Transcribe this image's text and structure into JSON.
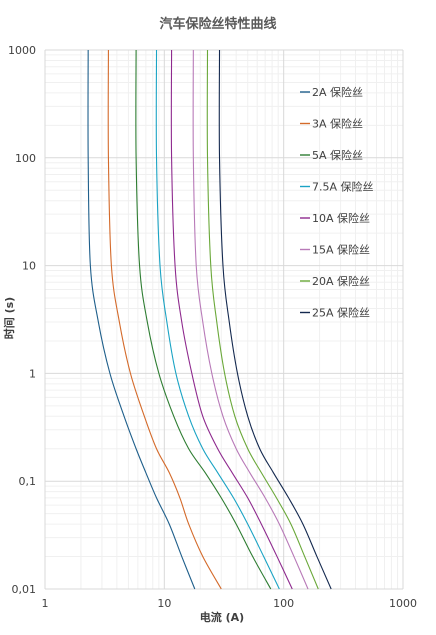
{
  "chart_data": {
    "type": "line",
    "title": "汽车保险丝特性曲线",
    "xlabel": "电流 (A)",
    "ylabel": "时间 (s)",
    "x_scale": "log",
    "y_scale": "log",
    "xlim": [
      1,
      1000
    ],
    "ylim": [
      0.01,
      1000
    ],
    "x_ticks": [
      {
        "value": 1,
        "label": "1"
      },
      {
        "value": 10,
        "label": "10"
      },
      {
        "value": 100,
        "label": "100"
      },
      {
        "value": 1000,
        "label": "1000"
      }
    ],
    "y_ticks": [
      {
        "value": 1000,
        "label": "1000"
      },
      {
        "value": 100,
        "label": "100"
      },
      {
        "value": 10,
        "label": "10"
      },
      {
        "value": 1,
        "label": "1"
      },
      {
        "value": 0.1,
        "label": "0,1"
      },
      {
        "value": 0.01,
        "label": "0,01"
      }
    ],
    "grid": true,
    "legend": "right",
    "series": [
      {
        "name": "2A 保险丝",
        "color": "#1f5f8b",
        "x": [
          2.3,
          2.3,
          2.4,
          2.8,
          3.5,
          4.6,
          5.8,
          7.0,
          8.6,
          11.0,
          14.0,
          18.0
        ],
        "y": [
          1000,
          100,
          10,
          3,
          1,
          0.4,
          0.2,
          0.12,
          0.07,
          0.04,
          0.02,
          0.01
        ]
      },
      {
        "name": "3A 保险丝",
        "color": "#d46a2a",
        "x": [
          3.4,
          3.4,
          3.6,
          4.2,
          5.2,
          6.8,
          8.6,
          11.0,
          13.5,
          16.0,
          21.0,
          30.0
        ],
        "y": [
          1000,
          100,
          10,
          3,
          1,
          0.4,
          0.2,
          0.12,
          0.07,
          0.04,
          0.02,
          0.01
        ]
      },
      {
        "name": "5A 保险丝",
        "color": "#2e7d32",
        "x": [
          5.8,
          5.8,
          6.2,
          7.2,
          9.0,
          12.0,
          16.0,
          22.0,
          30.0,
          40.0,
          55.0,
          78.0
        ],
        "y": [
          1000,
          100,
          10,
          3,
          1,
          0.4,
          0.2,
          0.12,
          0.07,
          0.04,
          0.02,
          0.01
        ]
      },
      {
        "name": "7.5A 保险丝",
        "color": "#1aa3c4",
        "x": [
          8.6,
          8.6,
          9.2,
          10.5,
          12.5,
          16.0,
          21.0,
          28.0,
          38.0,
          50.0,
          68.0,
          92.0
        ],
        "y": [
          1000,
          100,
          10,
          3,
          1,
          0.4,
          0.2,
          0.12,
          0.07,
          0.04,
          0.02,
          0.01
        ]
      },
      {
        "name": "10A 保险丝",
        "color": "#8e2a8e",
        "x": [
          11.5,
          11.5,
          12.3,
          14.0,
          17.0,
          21.0,
          28.0,
          37.0,
          50.0,
          65.0,
          88.0,
          118.0
        ],
        "y": [
          1000,
          100,
          10,
          3,
          1,
          0.4,
          0.2,
          0.12,
          0.07,
          0.04,
          0.02,
          0.01
        ]
      },
      {
        "name": "15A 保险丝",
        "color": "#b87ab8",
        "x": [
          17.5,
          17.5,
          18.5,
          21.0,
          25.0,
          31.0,
          40.0,
          52.0,
          70.0,
          92.0,
          122.0,
          160.0
        ],
        "y": [
          1000,
          100,
          10,
          3,
          1,
          0.4,
          0.2,
          0.12,
          0.07,
          0.04,
          0.02,
          0.01
        ]
      },
      {
        "name": "20A 保险丝",
        "color": "#6aa839",
        "x": [
          23.0,
          23.0,
          24.5,
          27.5,
          32.0,
          39.0,
          50.0,
          65.0,
          87.0,
          115.0,
          150.0,
          195.0
        ],
        "y": [
          1000,
          100,
          10,
          3,
          1,
          0.4,
          0.2,
          0.12,
          0.07,
          0.04,
          0.02,
          0.01
        ]
      },
      {
        "name": "25A 保险丝",
        "color": "#14294f",
        "x": [
          29.0,
          29.0,
          31.0,
          35.0,
          41.0,
          50.0,
          63.0,
          82.0,
          110.0,
          145.0,
          190.0,
          250.0
        ],
        "y": [
          1000,
          100,
          10,
          3,
          1,
          0.4,
          0.2,
          0.12,
          0.07,
          0.04,
          0.02,
          0.01
        ]
      }
    ]
  }
}
